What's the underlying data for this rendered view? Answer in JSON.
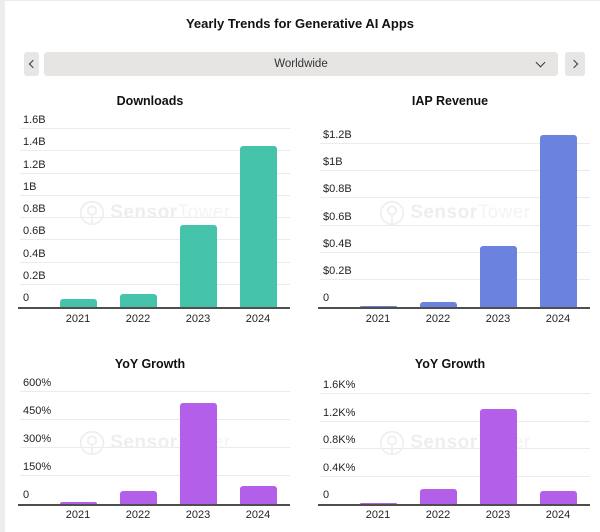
{
  "header": {
    "title": "Yearly Trends for Generative AI Apps"
  },
  "selector": {
    "value": "Worldwide",
    "icons": {
      "prev": "chevron-left",
      "next": "chevron-right",
      "expand": "chevron-down"
    }
  },
  "watermark": {
    "brand_bold": "Sensor",
    "brand_light": "Tower",
    "logo": "sensor-tower-circle-logo",
    "color": "#efefef"
  },
  "chart_data": [
    {
      "type": "bar",
      "title": "Downloads",
      "categories": [
        "2021",
        "2022",
        "2023",
        "2024"
      ],
      "values": [
        0.07,
        0.12,
        0.74,
        1.45
      ],
      "unit": "B",
      "y_ticks": [
        {
          "value": 0,
          "label": "0"
        },
        {
          "value": 0.2,
          "label": "0.2B"
        },
        {
          "value": 0.4,
          "label": "0.4B"
        },
        {
          "value": 0.6,
          "label": "0.6B"
        },
        {
          "value": 0.8,
          "label": "0.8B"
        },
        {
          "value": 1,
          "label": "1B"
        },
        {
          "value": 1.2,
          "label": "1.2B"
        },
        {
          "value": 1.4,
          "label": "1.4B"
        },
        {
          "value": 1.6,
          "label": "1.6B"
        }
      ],
      "ylim": [
        0,
        1.71
      ],
      "bar_color": "#45c3ab",
      "grid": true,
      "legend": "none"
    },
    {
      "type": "bar",
      "title": "IAP Revenue",
      "categories": [
        "2021",
        "2022",
        "2023",
        "2024"
      ],
      "values": [
        0.01,
        0.04,
        0.45,
        1.27
      ],
      "unit": "$B",
      "y_ticks": [
        {
          "value": 0,
          "label": "0"
        },
        {
          "value": 0.2,
          "label": "$0.2B"
        },
        {
          "value": 0.4,
          "label": "$0.4B"
        },
        {
          "value": 0.6,
          "label": "$0.6B"
        },
        {
          "value": 0.8,
          "label": "$0.8B"
        },
        {
          "value": 1,
          "label": "$1B"
        },
        {
          "value": 1.2,
          "label": "$1.2B"
        }
      ],
      "ylim": [
        0,
        1.4
      ],
      "bar_color": "#6b83df",
      "grid": true,
      "legend": "none"
    },
    {
      "type": "bar",
      "title": "YoY Growth",
      "categories": [
        "2021",
        "2022",
        "2023",
        "2024"
      ],
      "values": [
        10,
        70,
        540,
        95
      ],
      "unit": "%",
      "y_ticks": [
        {
          "value": 0,
          "label": "0"
        },
        {
          "value": 150,
          "label": "150%"
        },
        {
          "value": 300,
          "label": "300%"
        },
        {
          "value": 450,
          "label": "450%"
        },
        {
          "value": 600,
          "label": "600%"
        }
      ],
      "ylim": [
        0,
        667
      ],
      "bar_color": "#b45fe9",
      "grid": true,
      "legend": "none"
    },
    {
      "type": "bar",
      "title": "YoY Growth",
      "categories": [
        "2021",
        "2022",
        "2023",
        "2024"
      ],
      "values": [
        20,
        215,
        1380,
        190
      ],
      "unit": "K%",
      "y_ticks": [
        {
          "value": 0,
          "label": "0"
        },
        {
          "value": 400,
          "label": "0.4K%"
        },
        {
          "value": 800,
          "label": "0.8K%"
        },
        {
          "value": 1200,
          "label": "1.2K%"
        },
        {
          "value": 1600,
          "label": "1.6K%"
        }
      ],
      "ylim": [
        0,
        1820
      ],
      "bar_color": "#b45fe9",
      "grid": true,
      "legend": "none"
    }
  ]
}
